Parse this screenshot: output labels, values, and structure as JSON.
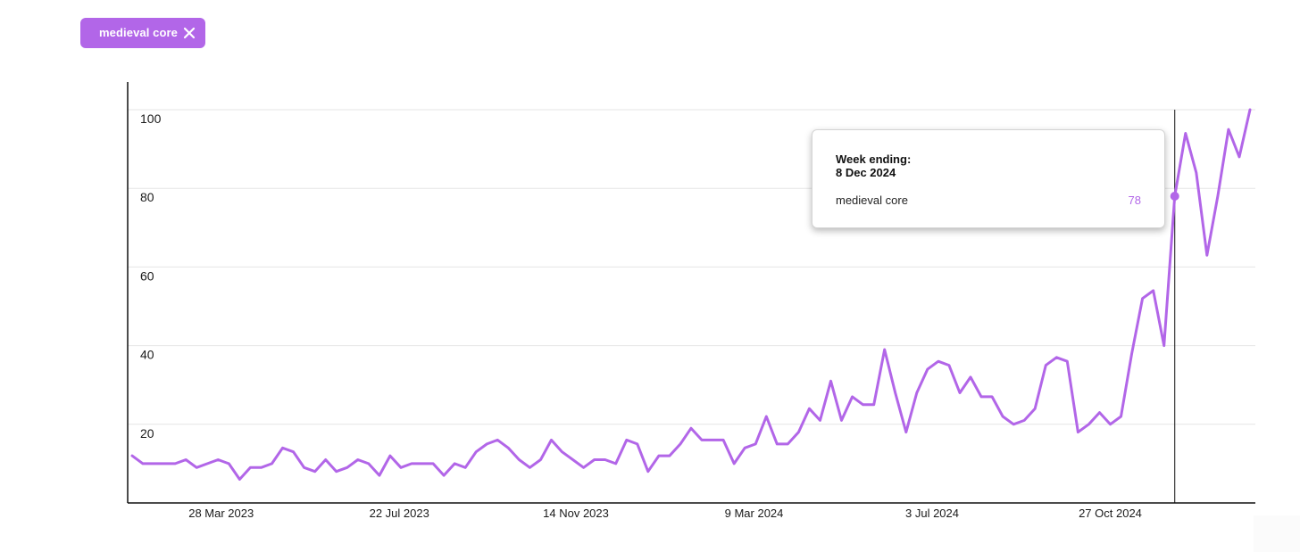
{
  "filter_chip": {
    "label": "medieval core",
    "close_icon": "close-icon"
  },
  "tooltip": {
    "title": "Week ending:",
    "date": "8 Dec 2024",
    "series": "medieval core",
    "value": "78"
  },
  "colors": {
    "accent": "#b266e8",
    "axis": "#111111",
    "grid": "#e6e6e6"
  },
  "chart_data": {
    "type": "line",
    "title": "",
    "xlabel": "",
    "ylabel": "",
    "ylim": [
      0,
      100
    ],
    "grid": true,
    "y_ticks": [
      "20",
      "40",
      "60",
      "80",
      "100"
    ],
    "x_ticks": [
      "28 Mar 2023",
      "22 Jul 2023",
      "14 Nov 2023",
      "9 Mar 2024",
      "3 Jul 2024",
      "27 Oct 2024"
    ],
    "highlight": {
      "date": "8 Dec 2024",
      "value": 78
    },
    "series": [
      {
        "name": "medieval core",
        "color": "#b266e8",
        "x": [
          "2023-01-29",
          "2023-02-05",
          "2023-02-12",
          "2023-02-19",
          "2023-02-26",
          "2023-03-05",
          "2023-03-12",
          "2023-03-19",
          "2023-03-26",
          "2023-04-02",
          "2023-04-09",
          "2023-04-16",
          "2023-04-23",
          "2023-04-30",
          "2023-05-07",
          "2023-05-14",
          "2023-05-21",
          "2023-05-28",
          "2023-06-04",
          "2023-06-11",
          "2023-06-18",
          "2023-06-25",
          "2023-07-02",
          "2023-07-09",
          "2023-07-16",
          "2023-07-23",
          "2023-07-30",
          "2023-08-06",
          "2023-08-13",
          "2023-08-20",
          "2023-08-27",
          "2023-09-03",
          "2023-09-10",
          "2023-09-17",
          "2023-09-24",
          "2023-10-01",
          "2023-10-08",
          "2023-10-15",
          "2023-10-22",
          "2023-10-29",
          "2023-11-05",
          "2023-11-12",
          "2023-11-19",
          "2023-11-26",
          "2023-12-03",
          "2023-12-10",
          "2023-12-17",
          "2023-12-24",
          "2023-12-31",
          "2024-01-07",
          "2024-01-14",
          "2024-01-21",
          "2024-01-28",
          "2024-02-04",
          "2024-02-11",
          "2024-02-18",
          "2024-02-25",
          "2024-03-03",
          "2024-03-10",
          "2024-03-17",
          "2024-03-24",
          "2024-03-31",
          "2024-04-07",
          "2024-04-14",
          "2024-04-21",
          "2024-04-28",
          "2024-05-05",
          "2024-05-12",
          "2024-05-19",
          "2024-05-26",
          "2024-06-02",
          "2024-06-09",
          "2024-06-16",
          "2024-06-23",
          "2024-06-30",
          "2024-07-07",
          "2024-07-14",
          "2024-07-21",
          "2024-07-28",
          "2024-08-04",
          "2024-08-11",
          "2024-08-18",
          "2024-08-25",
          "2024-09-01",
          "2024-09-08",
          "2024-09-15",
          "2024-09-22",
          "2024-09-29",
          "2024-10-06",
          "2024-10-13",
          "2024-10-20",
          "2024-10-27",
          "2024-11-03",
          "2024-11-10",
          "2024-11-17",
          "2024-11-24",
          "2024-12-01",
          "2024-12-08",
          "2024-12-15",
          "2024-12-22",
          "2024-12-29",
          "2025-01-05",
          "2025-01-12",
          "2025-01-19",
          "2025-01-26"
        ],
        "values": [
          12,
          10,
          10,
          10,
          10,
          11,
          9,
          10,
          11,
          10,
          6,
          9,
          9,
          10,
          14,
          13,
          9,
          8,
          11,
          8,
          9,
          11,
          10,
          7,
          12,
          9,
          10,
          10,
          10,
          7,
          10,
          9,
          13,
          15,
          16,
          14,
          11,
          9,
          11,
          16,
          13,
          11,
          9,
          11,
          11,
          10,
          16,
          15,
          8,
          12,
          12,
          15,
          19,
          16,
          16,
          16,
          10,
          14,
          15,
          22,
          15,
          15,
          18,
          24,
          21,
          31,
          21,
          27,
          25,
          25,
          39,
          28,
          18,
          28,
          34,
          36,
          35,
          28,
          32,
          27,
          27,
          22,
          20,
          21,
          24,
          35,
          37,
          36,
          18,
          20,
          23,
          20,
          22,
          38,
          52,
          54,
          40,
          78,
          94,
          84,
          63,
          78,
          95,
          88,
          100
        ]
      }
    ]
  }
}
